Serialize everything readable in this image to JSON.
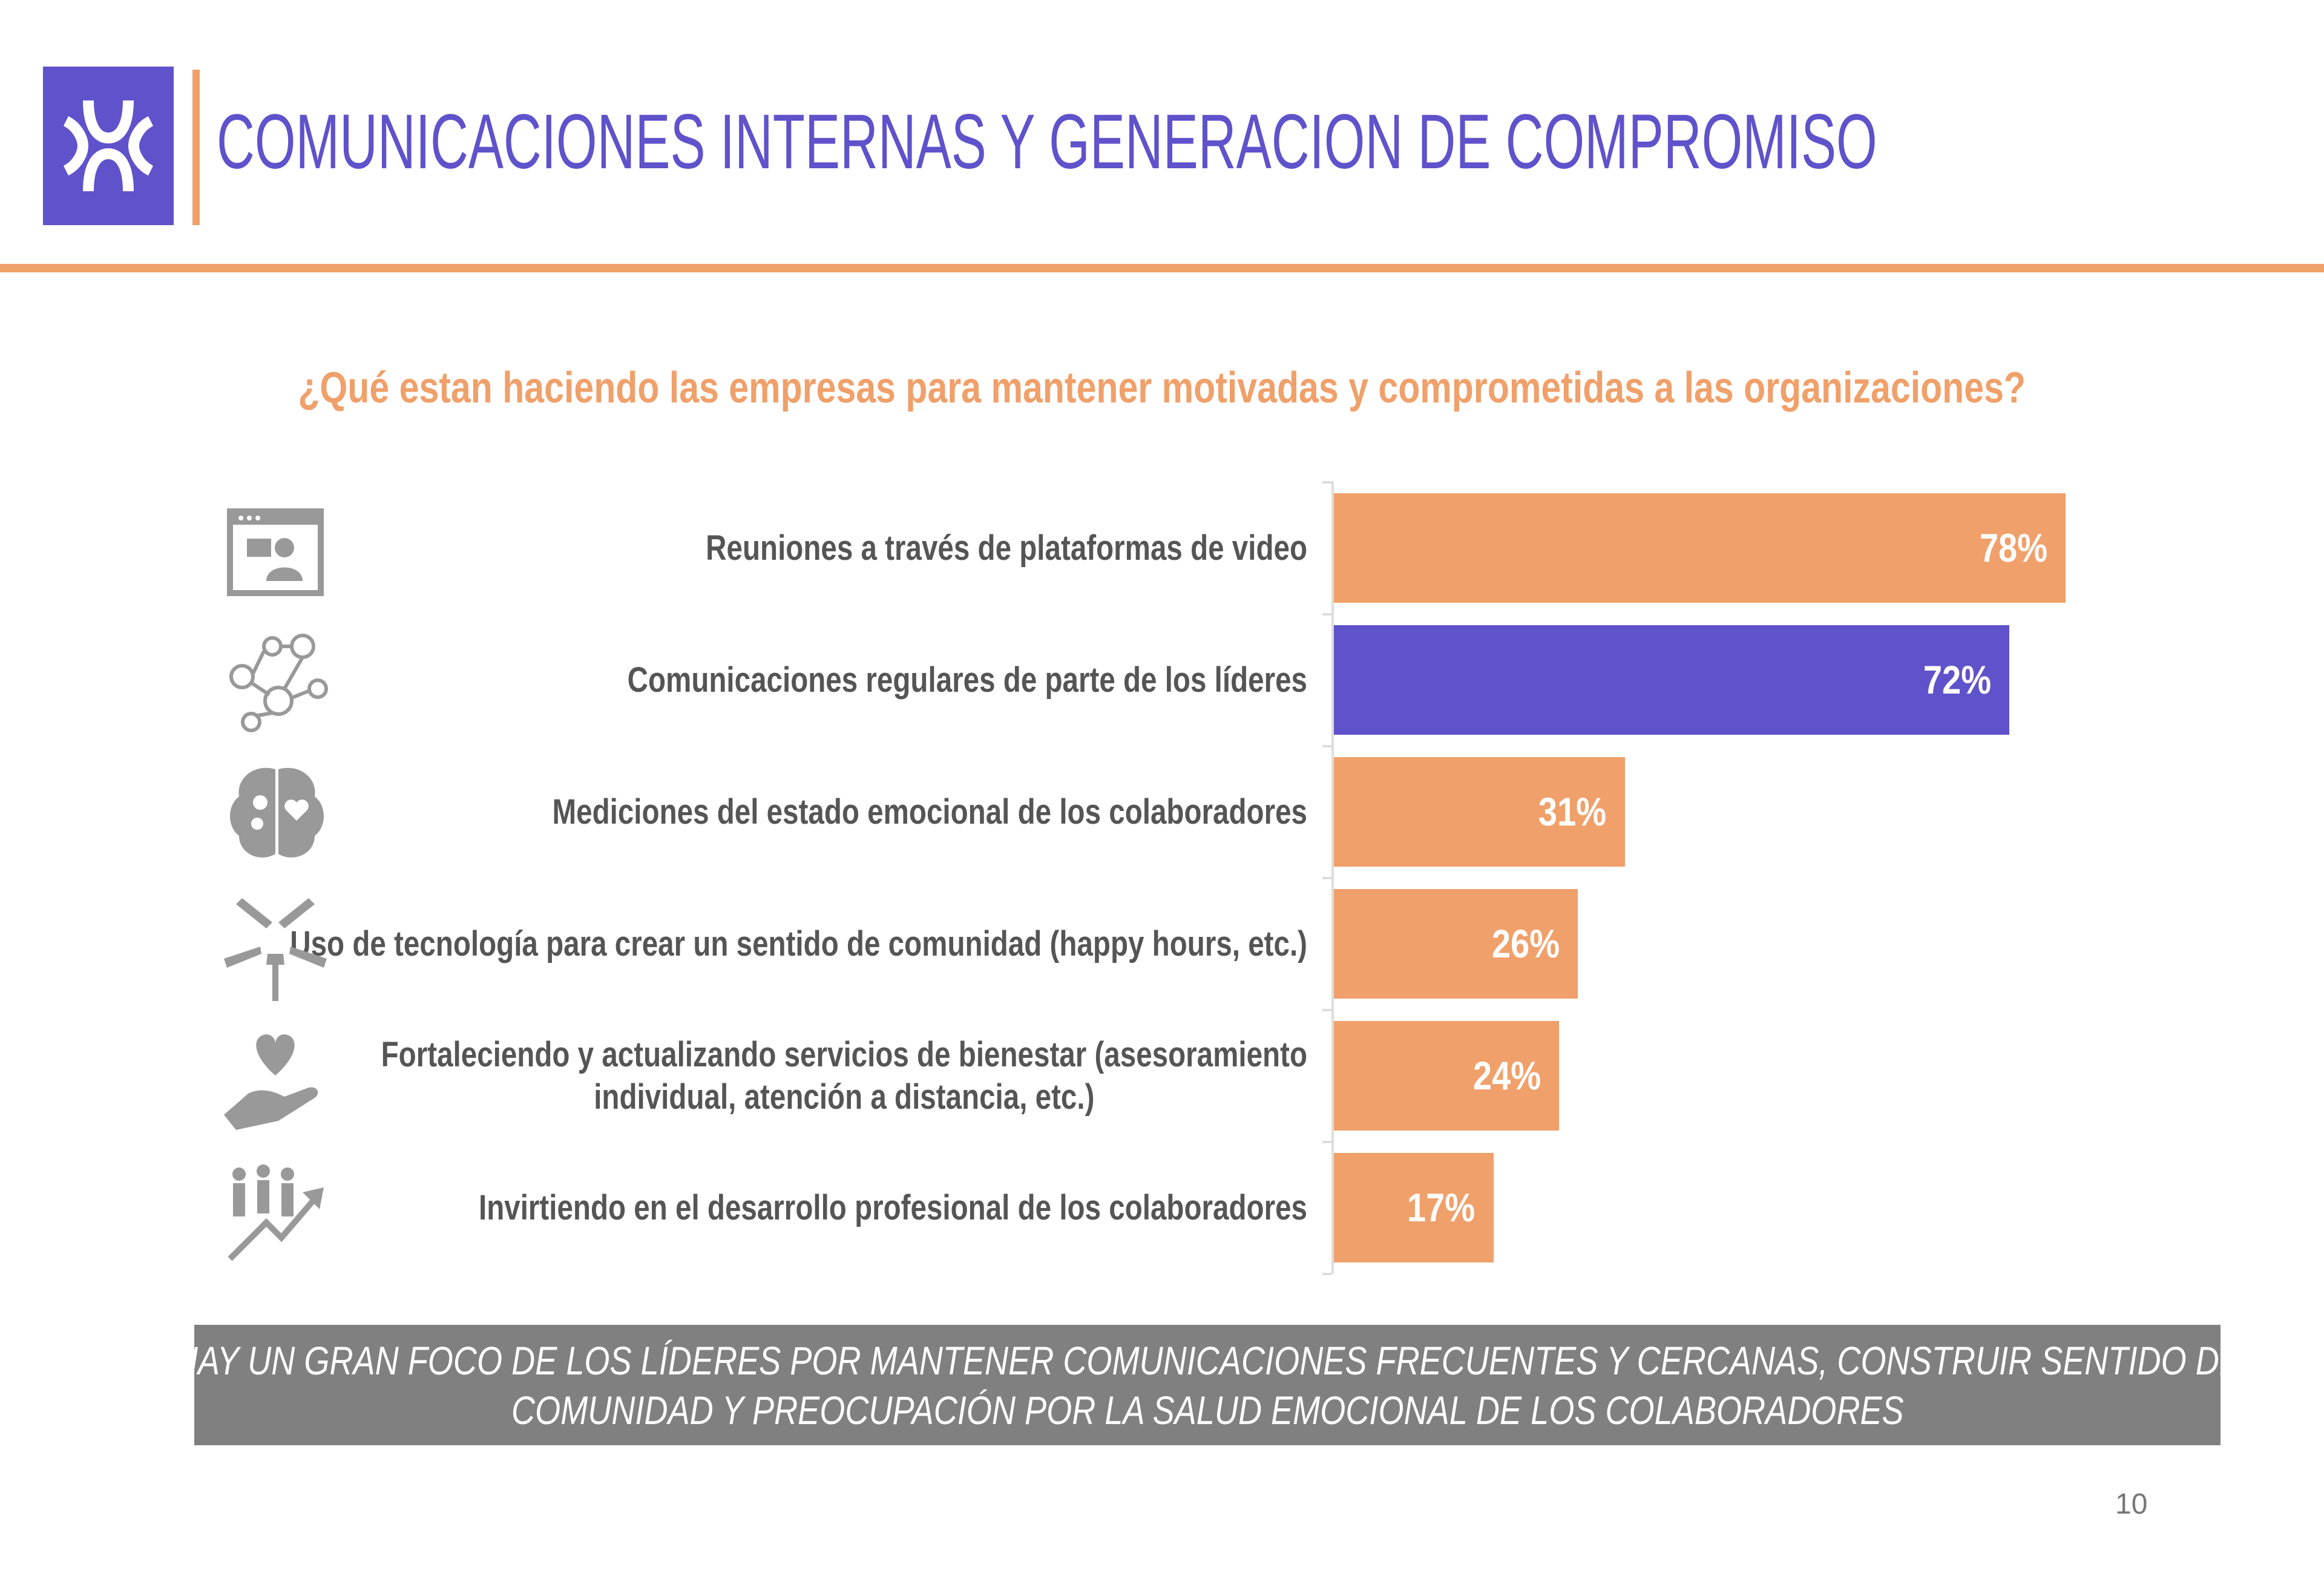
{
  "header": {
    "title": "COMUNICACIONES INTERNAS Y GENERACION DE COMPROMISO",
    "brand_color": "#5F52CB",
    "accent_color": "#F0A06A"
  },
  "question": "¿Qué estan haciendo las empresas para mantener motivadas y comprometidas a las organizaciones?",
  "chart_data": {
    "type": "bar",
    "orientation": "horizontal",
    "categories": [
      "Reuniones a través de plataformas de video",
      "Comunicaciones regulares de parte de los líderes",
      "Mediciones del estado emocional de los colaboradores",
      "Uso de tecnología para crear un sentido de comunidad (happy hours, etc.)",
      "Fortaleciendo y actualizando servicios de bienestar (asesoramiento individual, atención a distancia, etc.)",
      "Invirtiendo en el desarrollo profesional de los colaboradores"
    ],
    "category_lines": [
      [
        "Reuniones a través de plataformas de video"
      ],
      [
        "Comunicaciones regulares de parte de los líderes"
      ],
      [
        "Mediciones del estado emocional de los colaboradores"
      ],
      [
        "Uso de tecnología para crear un sentido de comunidad (happy hours, etc.)"
      ],
      [
        "Fortaleciendo y actualizando servicios de bienestar (asesoramiento",
        "individual, atención a distancia, etc.)"
      ],
      [
        "Invirtiendo en el desarrollo profesional de los colaboradores"
      ]
    ],
    "values": [
      78,
      72,
      31,
      26,
      24,
      17
    ],
    "value_labels": [
      "78%",
      "72%",
      "31%",
      "26%",
      "24%",
      "17%"
    ],
    "bar_colors": [
      "#F0A06A",
      "#5F52CB",
      "#F0A06A",
      "#F0A06A",
      "#F0A06A",
      "#F0A06A"
    ],
    "icons": [
      "video-call-icon",
      "network-people-icon",
      "brain-gears-heart-icon",
      "hands-circle-icon",
      "hand-heart-icon",
      "people-growth-icon"
    ],
    "xlim": [
      0,
      100
    ],
    "grid": false,
    "legend": "none"
  },
  "banner": {
    "lines": [
      "HAY UN GRAN FOCO DE LOS LÍDERES POR MANTENER COMUNICACIONES FRECUENTES Y CERCANAS, CONSTRUIR SENTIDO DE",
      "COMUNIDAD Y PREOCUPACIÓN POR LA SALUD EMOCIONAL DE LOS COLABORADORES"
    ]
  },
  "page_number": "10"
}
